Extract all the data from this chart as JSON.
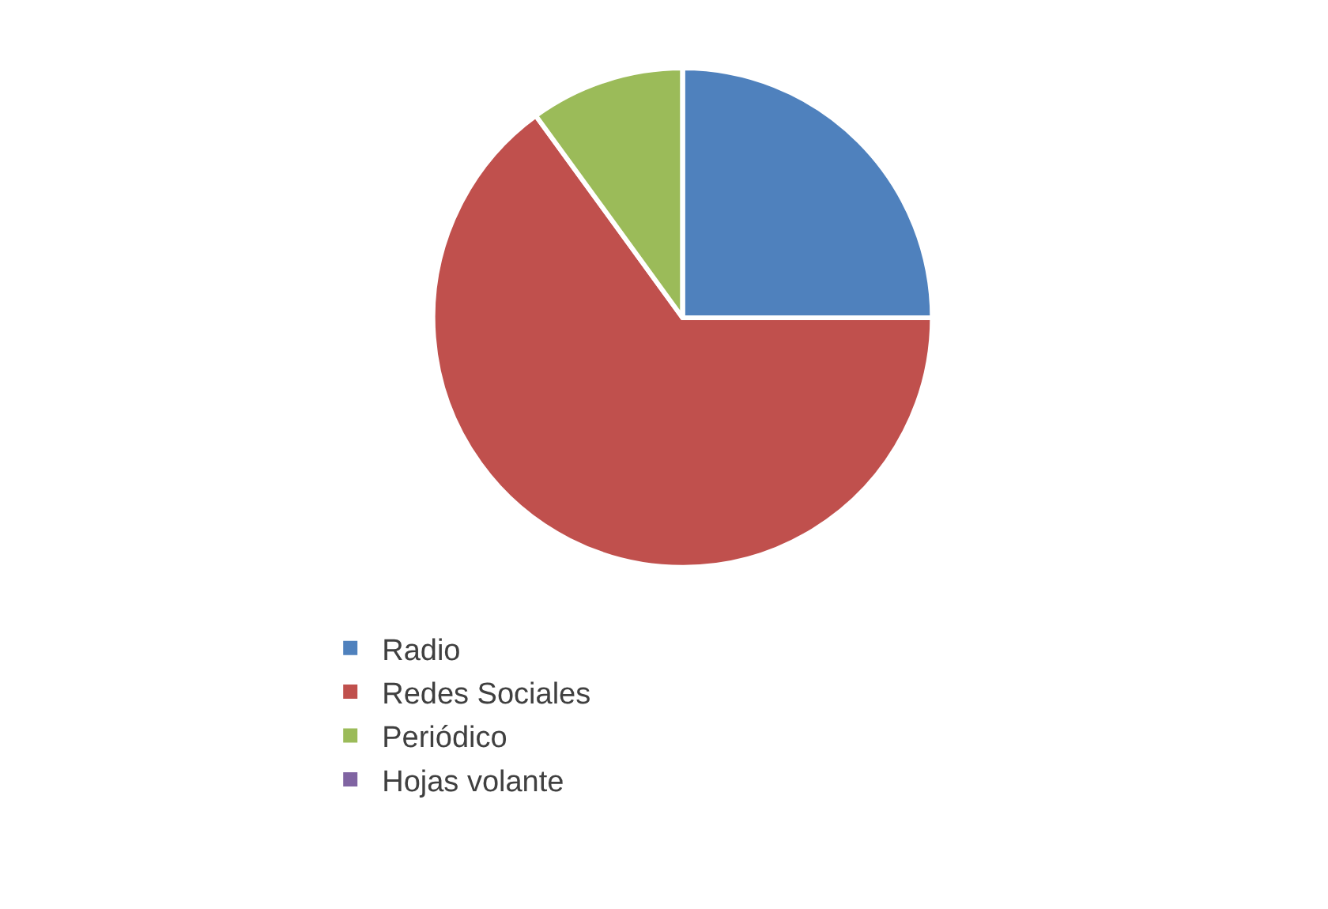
{
  "chart_data": {
    "type": "pie",
    "categories": [
      "Radio",
      "Redes Sociales",
      "Periódico",
      "Hojas volante"
    ],
    "values": [
      25,
      65,
      10,
      0
    ],
    "colors": [
      "#4f81bd",
      "#c0504d",
      "#9bbb59",
      "#8064a2"
    ],
    "legend": "bottom"
  }
}
